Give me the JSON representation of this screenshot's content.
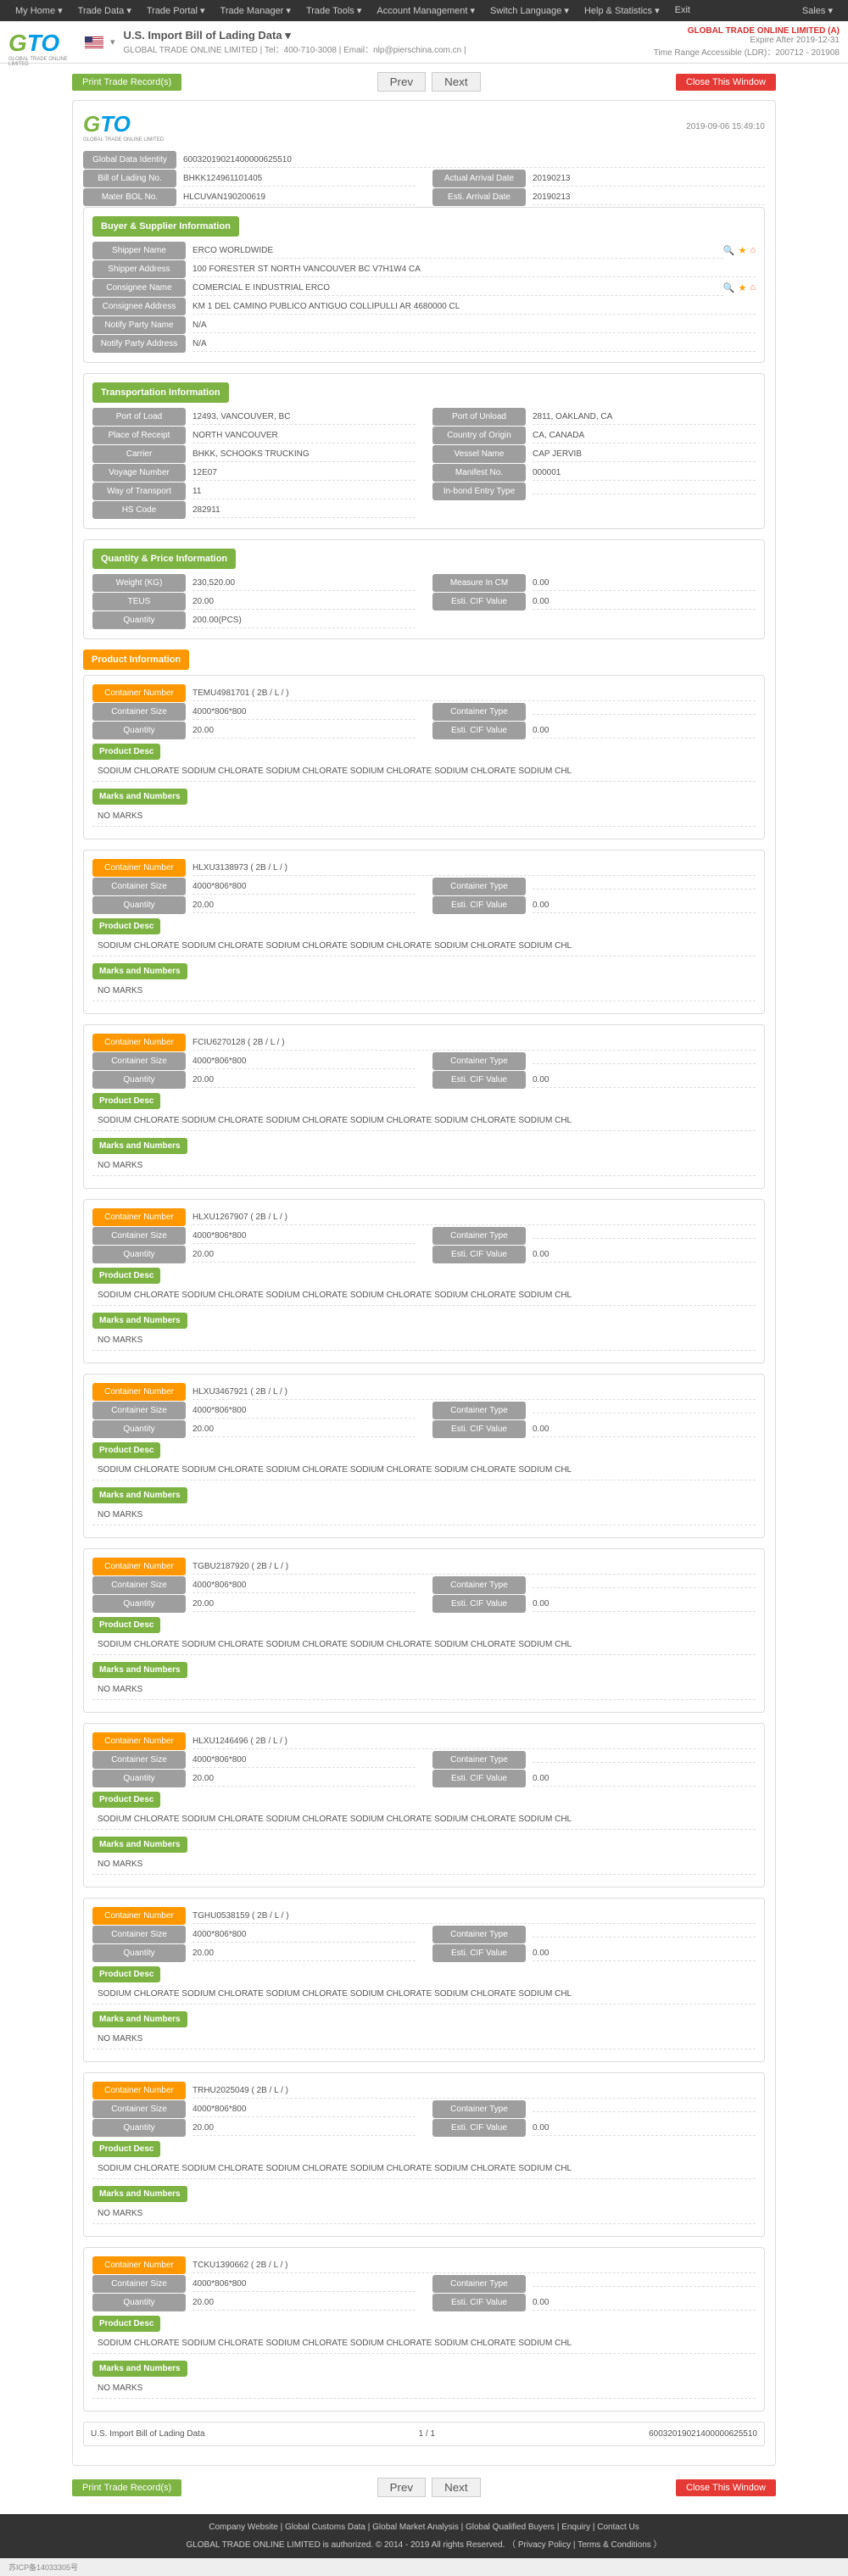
{
  "topbar": {
    "left": [
      "My Home ▾",
      "Trade Data ▾",
      "Trade Portal ▾",
      "Trade Manager ▾",
      "Trade Tools ▾",
      "Account Management ▾",
      "Switch Language ▾",
      "Help & Statistics ▾",
      "Exit"
    ],
    "right": "Sales ▾"
  },
  "header": {
    "title": "U.S. Import Bill of Lading Data  ▾",
    "subtitle": "GLOBAL TRADE ONLINE LIMITED | Tel：400-710-3008 | Email：nlp@pierschina.com.cn |",
    "company": "GLOBAL TRADE ONLINE LIMITED (A)",
    "expire": "Expire After 2019-12-31",
    "range": "Time Range Accessible (LDR)：200712 - 201908"
  },
  "actions": {
    "print": "Print Trade Record(s)",
    "prev": "Prev",
    "next": "Next",
    "close": "Close This Window"
  },
  "timestamp": "2019-09-06 15:49:10",
  "basic": {
    "id_label": "Global Data Identity",
    "id": "60032019021400000625510",
    "bol_label": "Bill of Lading No.",
    "bol": "BHKK124961101405",
    "mbol_label": "Mater BOL No.",
    "mbol": "HLCUVAN190200619",
    "arrival_label": "Actual Arrival Date",
    "arrival": "20190213",
    "est_label": "Esti. Arrival Date",
    "est": "20190213"
  },
  "buyer": {
    "header": "Buyer & Supplier Information",
    "shipper_name_label": "Shipper Name",
    "shipper_name": "ERCO WORLDWIDE",
    "shipper_addr_label": "Shipper Address",
    "shipper_addr": "100 FORESTER ST NORTH VANCOUVER BC V7H1W4 CA",
    "consignee_name_label": "Consignee Name",
    "consignee_name": "COMERCIAL E INDUSTRIAL ERCO",
    "consignee_addr_label": "Consignee Address",
    "consignee_addr": "KM 1 DEL CAMINO PUBLICO ANTIGUO COLLIPULLI AR 4680000 CL",
    "notify_name_label": "Notify Party Name",
    "notify_name": "N/A",
    "notify_addr_label": "Notify Party Address",
    "notify_addr": "N/A"
  },
  "transport": {
    "header": "Transportation Information",
    "pol_label": "Port of Load",
    "pol": "12493, VANCOUVER, BC",
    "pou_label": "Port of Unload",
    "pou": "2811, OAKLAND, CA",
    "por_label": "Place of Receipt",
    "por": "NORTH VANCOUVER",
    "origin_label": "Country of Origin",
    "origin": "CA, CANADA",
    "carrier_label": "Carrier",
    "carrier": "BHKK, SCHOOKS TRUCKING",
    "vessel_label": "Vessel Name",
    "vessel": "CAP JERVIB",
    "voyage_label": "Voyage Number",
    "voyage": "12E07",
    "manifest_label": "Manifest No.",
    "manifest": "000001",
    "wot_label": "Way of Transport",
    "wot": "11",
    "inbond_label": "In-bond Entry Type",
    "inbond": "",
    "hs_label": "HS Code",
    "hs": "282911"
  },
  "qty": {
    "header": "Quantity & Price Information",
    "weight_label": "Weight (KG)",
    "weight": "230,520.00",
    "measure_label": "Measure In CM",
    "measure": "0.00",
    "teus_label": "TEUS",
    "teus": "20.00",
    "cif_label": "Esti. CIF Value",
    "cif": "0.00",
    "qty_label": "Quantity",
    "qty": "200.00(PCS)"
  },
  "product": {
    "header": "Product Information",
    "cn_label": "Container Number",
    "cs_label": "Container Size",
    "ct_label": "Container Type",
    "q_label": "Quantity",
    "cif_label": "Esti. CIF Value",
    "pd_label": "Product Desc",
    "mn_label": "Marks and Numbers",
    "containers": [
      {
        "num": "TEMU4981701 ( 2B / L /  )",
        "size": "4000*806*800",
        "type": "",
        "qty": "20.00",
        "cif": "0.00",
        "desc": "SODIUM CHLORATE SODIUM CHLORATE SODIUM CHLORATE SODIUM CHLORATE SODIUM CHLORATE SODIUM CHL",
        "marks": "NO MARKS"
      },
      {
        "num": "HLXU3138973 ( 2B / L /  )",
        "size": "4000*806*800",
        "type": "",
        "qty": "20.00",
        "cif": "0.00",
        "desc": "SODIUM CHLORATE SODIUM CHLORATE SODIUM CHLORATE SODIUM CHLORATE SODIUM CHLORATE SODIUM CHL",
        "marks": "NO MARKS"
      },
      {
        "num": "FCIU6270128 ( 2B / L /  )",
        "size": "4000*806*800",
        "type": "",
        "qty": "20.00",
        "cif": "0.00",
        "desc": "SODIUM CHLORATE SODIUM CHLORATE SODIUM CHLORATE SODIUM CHLORATE SODIUM CHLORATE SODIUM CHL",
        "marks": "NO MARKS"
      },
      {
        "num": "HLXU1267907 ( 2B / L /  )",
        "size": "4000*806*800",
        "type": "",
        "qty": "20.00",
        "cif": "0.00",
        "desc": "SODIUM CHLORATE SODIUM CHLORATE SODIUM CHLORATE SODIUM CHLORATE SODIUM CHLORATE SODIUM CHL",
        "marks": "NO MARKS"
      },
      {
        "num": "HLXU3467921 ( 2B / L /  )",
        "size": "4000*806*800",
        "type": "",
        "qty": "20.00",
        "cif": "0.00",
        "desc": "SODIUM CHLORATE SODIUM CHLORATE SODIUM CHLORATE SODIUM CHLORATE SODIUM CHLORATE SODIUM CHL",
        "marks": "NO MARKS"
      },
      {
        "num": "TGBU2187920 ( 2B / L /  )",
        "size": "4000*806*800",
        "type": "",
        "qty": "20.00",
        "cif": "0.00",
        "desc": "SODIUM CHLORATE SODIUM CHLORATE SODIUM CHLORATE SODIUM CHLORATE SODIUM CHLORATE SODIUM CHL",
        "marks": "NO MARKS"
      },
      {
        "num": "HLXU1246496 ( 2B / L /  )",
        "size": "4000*806*800",
        "type": "",
        "qty": "20.00",
        "cif": "0.00",
        "desc": "SODIUM CHLORATE SODIUM CHLORATE SODIUM CHLORATE SODIUM CHLORATE SODIUM CHLORATE SODIUM CHL",
        "marks": "NO MARKS"
      },
      {
        "num": "TGHU0538159 ( 2B / L /  )",
        "size": "4000*806*800",
        "type": "",
        "qty": "20.00",
        "cif": "0.00",
        "desc": "SODIUM CHLORATE SODIUM CHLORATE SODIUM CHLORATE SODIUM CHLORATE SODIUM CHLORATE SODIUM CHL",
        "marks": "NO MARKS"
      },
      {
        "num": "TRHU2025049 ( 2B / L /  )",
        "size": "4000*806*800",
        "type": "",
        "qty": "20.00",
        "cif": "0.00",
        "desc": "SODIUM CHLORATE SODIUM CHLORATE SODIUM CHLORATE SODIUM CHLORATE SODIUM CHLORATE SODIUM CHL",
        "marks": "NO MARKS"
      },
      {
        "num": "TCKU1390662 ( 2B / L /  )",
        "size": "4000*806*800",
        "type": "",
        "qty": "20.00",
        "cif": "0.00",
        "desc": "SODIUM CHLORATE SODIUM CHLORATE SODIUM CHLORATE SODIUM CHLORATE SODIUM CHLORATE SODIUM CHL",
        "marks": "NO MARKS"
      }
    ]
  },
  "footer_bar": {
    "title": "U.S. Import Bill of Lading Data",
    "page": "1 / 1",
    "id": "60032019021400000625510"
  },
  "footer": {
    "links": "Company Website  |  Global Customs Data  |  Global Market Analysis  |  Global Qualified Buyers  |  Enquiry  |  Contact Us",
    "copy": "GLOBAL TRADE ONLINE LIMITED is authorized. © 2014 - 2019 All rights Reserved.  （  Privacy Policy  |  Terms & Conditions  ）",
    "icp": "苏ICP备14033305号"
  }
}
